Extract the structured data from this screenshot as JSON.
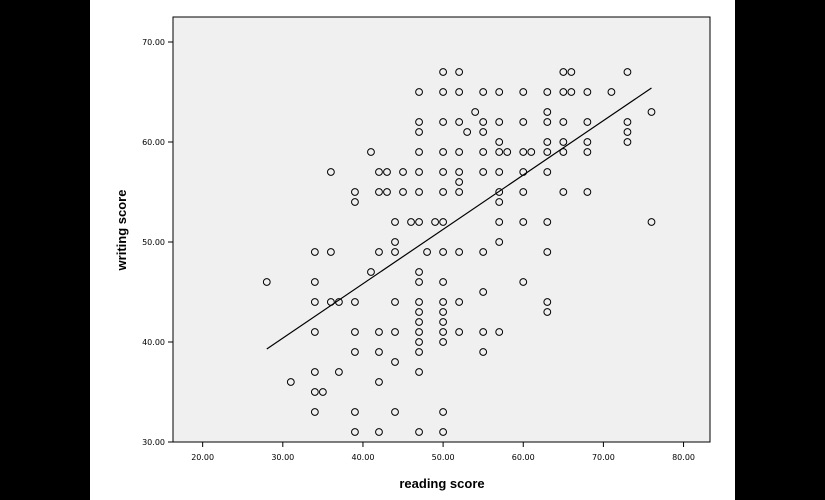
{
  "colors": {
    "background": "#000000",
    "panel": "#ffffff",
    "plot_area": "#f0f0f0",
    "marker": "#000000",
    "line": "#000000"
  },
  "chart_data": {
    "type": "scatter",
    "xlabel": "reading score",
    "ylabel": "writing score",
    "xlim": [
      16.3,
      83.3
    ],
    "ylim": [
      30,
      72.5
    ],
    "xticks": [
      20,
      30,
      40,
      50,
      60,
      70,
      80
    ],
    "yticks": [
      30,
      40,
      50,
      60,
      70
    ],
    "xtick_labels": [
      "20.00",
      "30.00",
      "40.00",
      "50.00",
      "60.00",
      "70.00",
      "80.00"
    ],
    "ytick_labels": [
      "30.00",
      "40.00",
      "50.00",
      "60.00",
      "70.00"
    ],
    "grid": false,
    "marker": "hollow-circle",
    "fit_line": {
      "x": [
        28,
        76
      ],
      "y": [
        39.3,
        65.4
      ]
    },
    "points": [
      [
        28,
        46
      ],
      [
        31,
        36
      ],
      [
        34,
        37
      ],
      [
        34,
        35
      ],
      [
        34,
        33
      ],
      [
        34,
        41
      ],
      [
        34,
        44
      ],
      [
        34,
        46
      ],
      [
        34,
        49
      ],
      [
        35,
        35
      ],
      [
        36,
        44
      ],
      [
        36,
        49
      ],
      [
        36,
        57
      ],
      [
        37,
        37
      ],
      [
        37,
        44
      ],
      [
        39,
        31
      ],
      [
        39,
        33
      ],
      [
        39,
        39
      ],
      [
        39,
        41
      ],
      [
        39,
        44
      ],
      [
        39,
        54
      ],
      [
        39,
        55
      ],
      [
        41,
        47
      ],
      [
        41,
        59
      ],
      [
        42,
        31
      ],
      [
        42,
        36
      ],
      [
        42,
        39
      ],
      [
        42,
        41
      ],
      [
        42,
        49
      ],
      [
        42,
        55
      ],
      [
        42,
        57
      ],
      [
        43,
        55
      ],
      [
        43,
        57
      ],
      [
        44,
        33
      ],
      [
        44,
        38
      ],
      [
        44,
        41
      ],
      [
        44,
        44
      ],
      [
        44,
        49
      ],
      [
        44,
        50
      ],
      [
        44,
        52
      ],
      [
        45,
        55
      ],
      [
        45,
        57
      ],
      [
        46,
        52
      ],
      [
        47,
        31
      ],
      [
        47,
        37
      ],
      [
        47,
        39
      ],
      [
        47,
        40
      ],
      [
        47,
        41
      ],
      [
        47,
        42
      ],
      [
        47,
        43
      ],
      [
        47,
        44
      ],
      [
        47,
        46
      ],
      [
        47,
        47
      ],
      [
        47,
        52
      ],
      [
        47,
        55
      ],
      [
        47,
        57
      ],
      [
        47,
        59
      ],
      [
        47,
        61
      ],
      [
        47,
        62
      ],
      [
        47,
        65
      ],
      [
        48,
        49
      ],
      [
        49,
        52
      ],
      [
        50,
        31
      ],
      [
        50,
        33
      ],
      [
        50,
        40
      ],
      [
        50,
        41
      ],
      [
        50,
        42
      ],
      [
        50,
        43
      ],
      [
        50,
        44
      ],
      [
        50,
        46
      ],
      [
        50,
        49
      ],
      [
        50,
        52
      ],
      [
        50,
        55
      ],
      [
        50,
        57
      ],
      [
        50,
        59
      ],
      [
        50,
        62
      ],
      [
        50,
        65
      ],
      [
        50,
        67
      ],
      [
        52,
        41
      ],
      [
        52,
        44
      ],
      [
        52,
        49
      ],
      [
        52,
        55
      ],
      [
        52,
        56
      ],
      [
        52,
        57
      ],
      [
        52,
        59
      ],
      [
        52,
        62
      ],
      [
        52,
        65
      ],
      [
        52,
        67
      ],
      [
        53,
        61
      ],
      [
        54,
        63
      ],
      [
        55,
        39
      ],
      [
        55,
        41
      ],
      [
        55,
        45
      ],
      [
        55,
        49
      ],
      [
        55,
        57
      ],
      [
        55,
        59
      ],
      [
        55,
        61
      ],
      [
        55,
        62
      ],
      [
        55,
        65
      ],
      [
        57,
        41
      ],
      [
        57,
        50
      ],
      [
        57,
        52
      ],
      [
        57,
        54
      ],
      [
        57,
        55
      ],
      [
        57,
        57
      ],
      [
        57,
        59
      ],
      [
        57,
        60
      ],
      [
        57,
        62
      ],
      [
        57,
        65
      ],
      [
        58,
        59
      ],
      [
        60,
        46
      ],
      [
        60,
        52
      ],
      [
        60,
        55
      ],
      [
        60,
        57
      ],
      [
        60,
        59
      ],
      [
        60,
        62
      ],
      [
        60,
        65
      ],
      [
        61,
        59
      ],
      [
        63,
        43
      ],
      [
        63,
        44
      ],
      [
        63,
        49
      ],
      [
        63,
        52
      ],
      [
        63,
        57
      ],
      [
        63,
        59
      ],
      [
        63,
        60
      ],
      [
        63,
        62
      ],
      [
        63,
        63
      ],
      [
        63,
        65
      ],
      [
        65,
        55
      ],
      [
        65,
        59
      ],
      [
        65,
        60
      ],
      [
        65,
        62
      ],
      [
        65,
        65
      ],
      [
        65,
        67
      ],
      [
        66,
        65
      ],
      [
        66,
        67
      ],
      [
        68,
        55
      ],
      [
        68,
        59
      ],
      [
        68,
        60
      ],
      [
        68,
        62
      ],
      [
        68,
        65
      ],
      [
        71,
        65
      ],
      [
        73,
        60
      ],
      [
        73,
        61
      ],
      [
        73,
        62
      ],
      [
        73,
        67
      ],
      [
        76,
        52
      ],
      [
        76,
        63
      ]
    ]
  }
}
